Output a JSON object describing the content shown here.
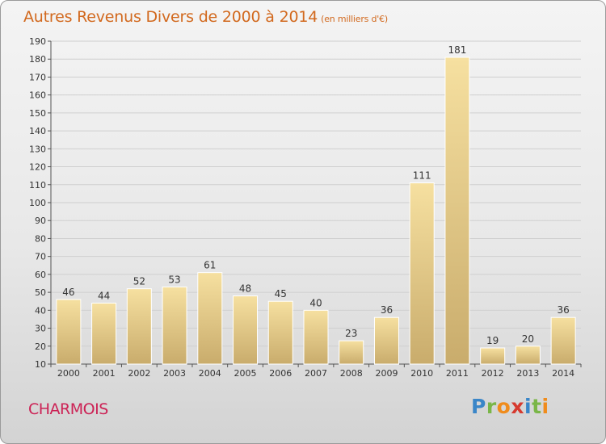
{
  "header": {
    "title": "Autres Revenus Divers de 2000 à 2014",
    "subtitle": "(en milliers d'€)"
  },
  "footer": {
    "city": "CHARMOIS",
    "logo_letters": [
      "P",
      "r",
      "o",
      "x",
      "i",
      "t",
      "i"
    ],
    "logo_colors": [
      "#3a86c8",
      "#7ab648",
      "#f08c1c",
      "#d63a2f",
      "#3a86c8",
      "#7ab648",
      "#f08c1c"
    ]
  },
  "colors": {
    "title": "#d2691e",
    "city": "#cc2255",
    "bar_light": "#f6e0a0",
    "bar_dark": "#c9ac6c",
    "grid": "#cfcfcf"
  },
  "chart_data": {
    "type": "bar",
    "title": "Autres Revenus Divers de 2000 à 2014",
    "subtitle": "(en milliers d'€)",
    "categories": [
      "2000",
      "2001",
      "2002",
      "2003",
      "2004",
      "2005",
      "2006",
      "2007",
      "2008",
      "2009",
      "2010",
      "2011",
      "2012",
      "2013",
      "2014"
    ],
    "values": [
      46,
      44,
      52,
      53,
      61,
      48,
      45,
      40,
      23,
      36,
      111,
      181,
      19,
      20,
      36
    ],
    "ylim": [
      10,
      190
    ],
    "yticks": [
      10,
      20,
      30,
      40,
      50,
      60,
      70,
      80,
      90,
      100,
      110,
      120,
      130,
      140,
      150,
      160,
      170,
      180,
      190
    ],
    "grid": true,
    "data_labels": true
  }
}
